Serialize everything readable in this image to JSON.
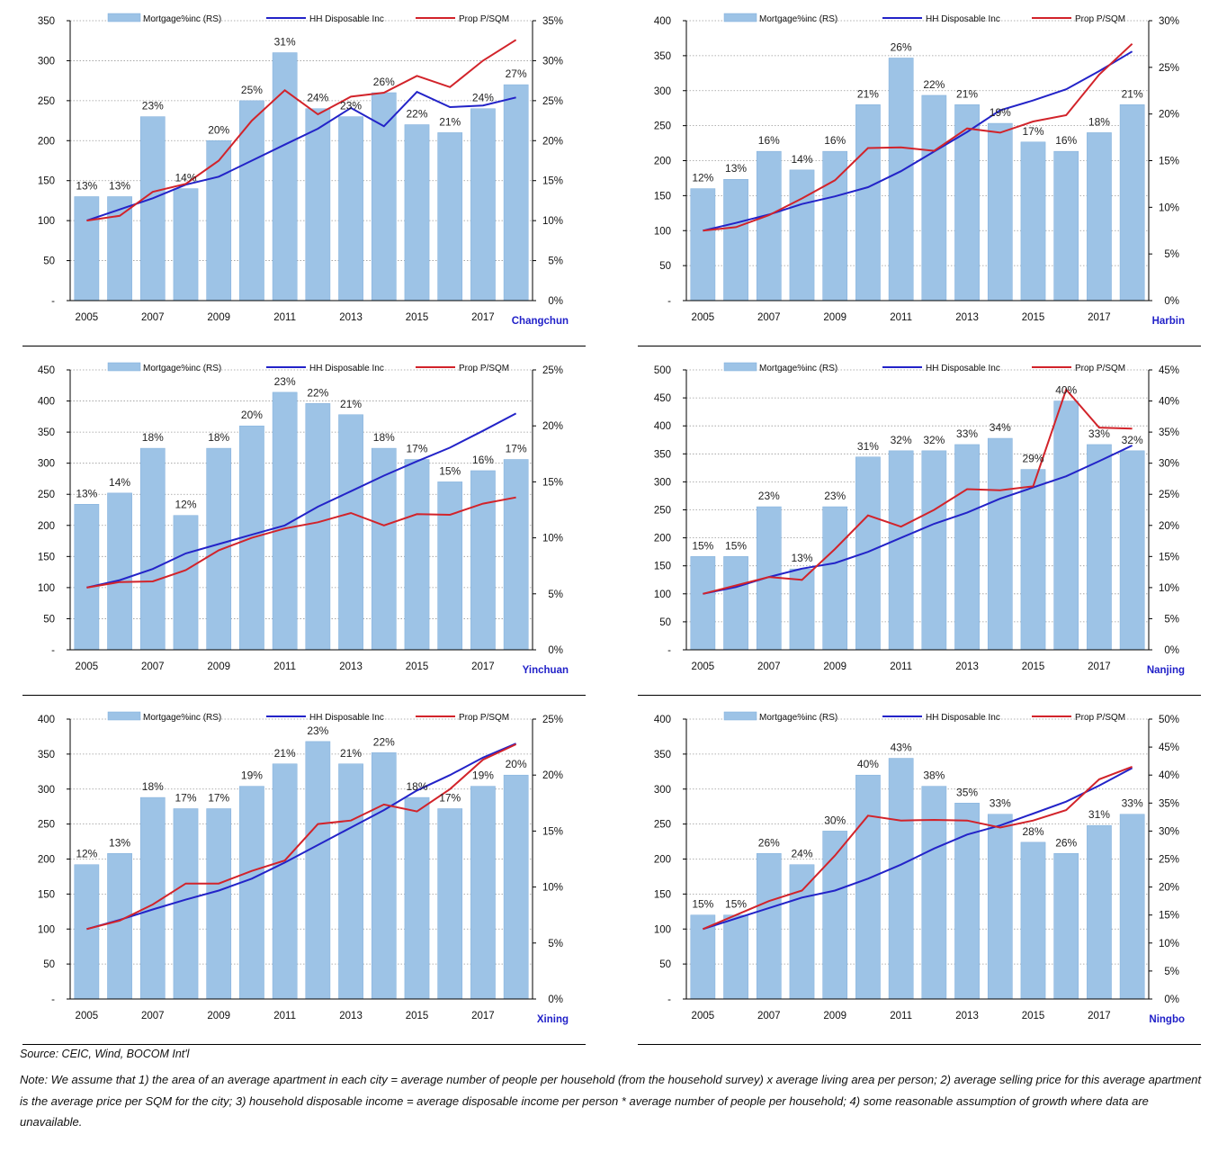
{
  "colors": {
    "bar": "#9DC3E6",
    "bar_edge": "#7FAEDB",
    "income_line": "#2323C8",
    "price_line": "#D2232A",
    "city_label": "#1F1FC8",
    "grid": "#999999"
  },
  "legend": {
    "bar": "Mortgage%inc (RS)",
    "income": "HH Disposable Inc",
    "price": "Prop P/SQM"
  },
  "source": "Source: CEIC, Wind, BOCOM Int'l",
  "note": "Note: We assume that 1) the area of an average apartment in each city = average number of people per household (from the household survey) x average living area per person; 2) average selling price for this average apartment is the average price per SQM for the city; 3) household disposable income = average disposable income per person * average number of people per household; 4) some reasonable assumption of growth where data are unavailable.",
  "chart_data": [
    {
      "type": "bar+line",
      "city": "Changchun",
      "years": [
        2005,
        2006,
        2007,
        2008,
        2009,
        2010,
        2011,
        2012,
        2013,
        2014,
        2015,
        2016,
        2017,
        2018
      ],
      "x_tick_labels": [
        "2005",
        "2007",
        "2009",
        "2011",
        "2013",
        "2015",
        "2017"
      ],
      "left_ticks": [
        "-",
        "50",
        "100",
        "150",
        "200",
        "250",
        "300",
        "350"
      ],
      "left_max": 350,
      "right_ticks": [
        "0%",
        "5%",
        "10%",
        "15%",
        "20%",
        "25%",
        "30%",
        "35%"
      ],
      "right_max": 35,
      "series": [
        {
          "name": "Mortgage%inc (RS)",
          "kind": "bar",
          "axis": "right",
          "values": [
            13,
            13,
            23,
            14,
            20,
            25,
            31,
            24,
            23,
            26,
            22,
            21,
            24,
            27
          ],
          "labels": [
            "13%",
            "13%",
            "23%",
            "14%",
            "20%",
            "25%",
            "31%",
            "24%",
            "23%",
            "26%",
            "22%",
            "21%",
            "24%",
            "27%"
          ]
        },
        {
          "name": "HH Disposable Inc",
          "kind": "line",
          "axis": "left",
          "values": [
            100,
            114,
            128,
            145,
            155,
            175,
            195,
            215,
            241,
            218,
            261,
            242,
            244,
            254
          ]
        },
        {
          "name": "Prop P/SQM",
          "kind": "line",
          "axis": "left",
          "values": [
            100,
            106,
            136,
            146,
            175,
            225,
            263,
            233,
            255,
            260,
            281,
            267,
            300,
            326
          ]
        }
      ]
    },
    {
      "type": "bar+line",
      "city": "Harbin",
      "years": [
        2005,
        2006,
        2007,
        2008,
        2009,
        2010,
        2011,
        2012,
        2013,
        2014,
        2015,
        2016,
        2017,
        2018
      ],
      "x_tick_labels": [
        "2005",
        "2007",
        "2009",
        "2011",
        "2013",
        "2015",
        "2017"
      ],
      "left_ticks": [
        "-",
        "50",
        "100",
        "150",
        "200",
        "250",
        "300",
        "350",
        "400"
      ],
      "left_max": 400,
      "right_ticks": [
        "0%",
        "5%",
        "10%",
        "15%",
        "20%",
        "25%",
        "30%"
      ],
      "right_max": 30,
      "series": [
        {
          "name": "Mortgage%inc (RS)",
          "kind": "bar",
          "axis": "right",
          "values": [
            12,
            13,
            16,
            14,
            16,
            21,
            26,
            22,
            21,
            19,
            17,
            16,
            18,
            21
          ],
          "labels": [
            "12%",
            "13%",
            "16%",
            "14%",
            "16%",
            "21%",
            "26%",
            "22%",
            "21%",
            "19%",
            "17%",
            "16%",
            "18%",
            "21%"
          ]
        },
        {
          "name": "HH Disposable Inc",
          "kind": "line",
          "axis": "left",
          "values": [
            100,
            111,
            123,
            138,
            149,
            162,
            185,
            213,
            241,
            272,
            286,
            302,
            328,
            356
          ]
        },
        {
          "name": "Prop P/SQM",
          "kind": "line",
          "axis": "left",
          "values": [
            100,
            105,
            122,
            146,
            172,
            218,
            219,
            214,
            246,
            240,
            256,
            265,
            323,
            367
          ]
        }
      ]
    },
    {
      "type": "bar+line",
      "city": "Yinchuan",
      "years": [
        2005,
        2006,
        2007,
        2008,
        2009,
        2010,
        2011,
        2012,
        2013,
        2014,
        2015,
        2016,
        2017,
        2018
      ],
      "x_tick_labels": [
        "2005",
        "2007",
        "2009",
        "2011",
        "2013",
        "2015",
        "2017"
      ],
      "left_ticks": [
        "-",
        "50",
        "100",
        "150",
        "200",
        "250",
        "300",
        "350",
        "400",
        "450"
      ],
      "left_max": 450,
      "right_ticks": [
        "0%",
        "5%",
        "10%",
        "15%",
        "20%",
        "25%"
      ],
      "right_max": 25,
      "series": [
        {
          "name": "Mortgage%inc (RS)",
          "kind": "bar",
          "axis": "right",
          "values": [
            13,
            14,
            18,
            12,
            18,
            20,
            23,
            22,
            21,
            18,
            17,
            15,
            16,
            17
          ],
          "labels": [
            "13%",
            "14%",
            "18%",
            "12%",
            "18%",
            "20%",
            "23%",
            "22%",
            "21%",
            "18%",
            "17%",
            "15%",
            "16%",
            "17%"
          ]
        },
        {
          "name": "HH Disposable Inc",
          "kind": "line",
          "axis": "left",
          "values": [
            100,
            112,
            130,
            155,
            170,
            185,
            200,
            230,
            255,
            280,
            303,
            325,
            352,
            380
          ]
        },
        {
          "name": "Prop P/SQM",
          "kind": "line",
          "axis": "left",
          "values": [
            100,
            109,
            110,
            128,
            160,
            180,
            195,
            205,
            220,
            200,
            218,
            217,
            235,
            245
          ]
        }
      ]
    },
    {
      "type": "bar+line",
      "city": "Nanjing",
      "years": [
        2005,
        2006,
        2007,
        2008,
        2009,
        2010,
        2011,
        2012,
        2013,
        2014,
        2015,
        2016,
        2017,
        2018
      ],
      "x_tick_labels": [
        "2005",
        "2007",
        "2009",
        "2011",
        "2013",
        "2015",
        "2017"
      ],
      "left_ticks": [
        "-",
        "50",
        "100",
        "150",
        "200",
        "250",
        "300",
        "350",
        "400",
        "450",
        "500"
      ],
      "left_max": 500,
      "right_ticks": [
        "0%",
        "5%",
        "10%",
        "15%",
        "20%",
        "25%",
        "30%",
        "35%",
        "40%",
        "45%"
      ],
      "right_max": 45,
      "series": [
        {
          "name": "Mortgage%inc (RS)",
          "kind": "bar",
          "axis": "right",
          "values": [
            15,
            15,
            23,
            13,
            23,
            31,
            32,
            32,
            33,
            34,
            29,
            40,
            33,
            32
          ],
          "labels": [
            "15%",
            "15%",
            "23%",
            "13%",
            "23%",
            "31%",
            "32%",
            "32%",
            "33%",
            "34%",
            "29%",
            "40%",
            "33%",
            "32%"
          ]
        },
        {
          "name": "HH Disposable Inc",
          "kind": "line",
          "axis": "left",
          "values": [
            100,
            112,
            130,
            145,
            155,
            175,
            200,
            225,
            245,
            270,
            290,
            310,
            337,
            365
          ]
        },
        {
          "name": "Prop P/SQM",
          "kind": "line",
          "axis": "left",
          "values": [
            100,
            115,
            130,
            125,
            180,
            240,
            220,
            250,
            287,
            285,
            292,
            465,
            397,
            395
          ]
        }
      ]
    },
    {
      "type": "bar+line",
      "city": "Xining",
      "years": [
        2005,
        2006,
        2007,
        2008,
        2009,
        2010,
        2011,
        2012,
        2013,
        2014,
        2015,
        2016,
        2017,
        2018
      ],
      "x_tick_labels": [
        "2005",
        "2007",
        "2009",
        "2011",
        "2013",
        "2015",
        "2017"
      ],
      "left_ticks": [
        "-",
        "50",
        "100",
        "150",
        "200",
        "250",
        "300",
        "350",
        "400"
      ],
      "left_max": 400,
      "right_ticks": [
        "0%",
        "5%",
        "10%",
        "15%",
        "20%",
        "25%"
      ],
      "right_max": 25,
      "series": [
        {
          "name": "Mortgage%inc (RS)",
          "kind": "bar",
          "axis": "right",
          "values": [
            12,
            13,
            18,
            17,
            17,
            19,
            21,
            23,
            21,
            22,
            18,
            17,
            19,
            20
          ],
          "labels": [
            "12%",
            "13%",
            "18%",
            "17%",
            "17%",
            "19%",
            "21%",
            "23%",
            "21%",
            "22%",
            "18%",
            "17%",
            "19%",
            "20%"
          ]
        },
        {
          "name": "HH Disposable Inc",
          "kind": "line",
          "axis": "left",
          "values": [
            100,
            113,
            128,
            142,
            155,
            172,
            195,
            220,
            245,
            270,
            298,
            320,
            345,
            365
          ]
        },
        {
          "name": "Prop P/SQM",
          "kind": "line",
          "axis": "left",
          "values": [
            100,
            112,
            135,
            165,
            165,
            183,
            198,
            250,
            255,
            278,
            268,
            300,
            342,
            364
          ]
        }
      ]
    },
    {
      "type": "bar+line",
      "city": "Ningbo",
      "years": [
        2005,
        2006,
        2007,
        2008,
        2009,
        2010,
        2011,
        2012,
        2013,
        2014,
        2015,
        2016,
        2017,
        2018
      ],
      "x_tick_labels": [
        "2005",
        "2007",
        "2009",
        "2011",
        "2013",
        "2015",
        "2017"
      ],
      "left_ticks": [
        "-",
        "50",
        "100",
        "150",
        "200",
        "250",
        "300",
        "350",
        "400"
      ],
      "left_max": 400,
      "right_ticks": [
        "0%",
        "5%",
        "10%",
        "15%",
        "20%",
        "25%",
        "30%",
        "35%",
        "40%",
        "45%",
        "50%"
      ],
      "right_max": 50,
      "series": [
        {
          "name": "Mortgage%inc (RS)",
          "kind": "bar",
          "axis": "right",
          "values": [
            15,
            15,
            26,
            24,
            30,
            40,
            43,
            38,
            35,
            33,
            28,
            26,
            31,
            33
          ],
          "labels": [
            "15%",
            "15%",
            "26%",
            "24%",
            "30%",
            "40%",
            "43%",
            "38%",
            "35%",
            "33%",
            "28%",
            "26%",
            "31%",
            "33%"
          ]
        },
        {
          "name": "HH Disposable Inc",
          "kind": "line",
          "axis": "left",
          "values": [
            100,
            115,
            130,
            145,
            155,
            172,
            192,
            215,
            235,
            248,
            265,
            282,
            305,
            330
          ]
        },
        {
          "name": "Prop P/SQM",
          "kind": "line",
          "axis": "left",
          "values": [
            100,
            120,
            140,
            155,
            205,
            262,
            255,
            256,
            255,
            245,
            255,
            270,
            314,
            332
          ]
        }
      ]
    }
  ]
}
